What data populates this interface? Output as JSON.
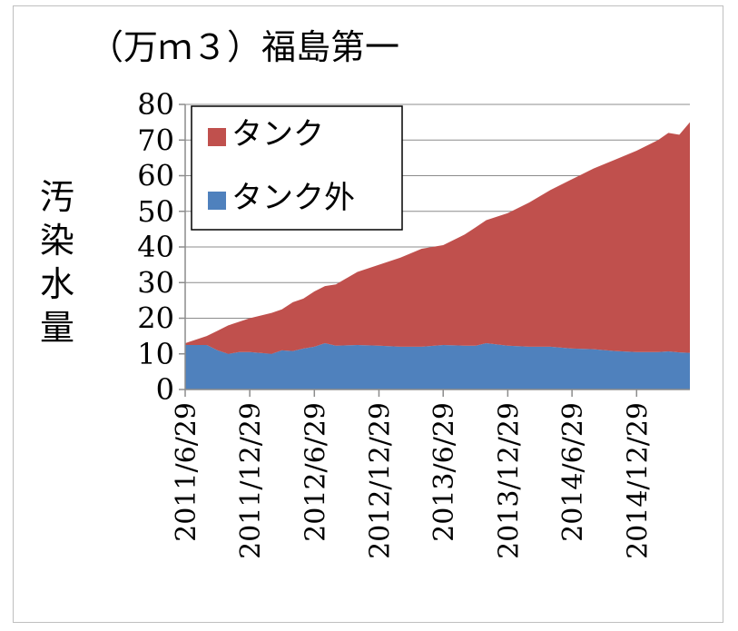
{
  "chart_data": {
    "type": "area",
    "stacked": true,
    "title": "（万ｍ３）福島第一",
    "ylabel": "汚染水量",
    "ylim": [
      0,
      80
    ],
    "yticks": [
      0,
      10,
      20,
      30,
      40,
      50,
      60,
      70,
      80
    ],
    "grid": true,
    "legend_position": "top-left",
    "x_tick_labels": [
      "2011/6/29",
      "2011/12/29",
      "2012/6/29",
      "2012/12/29",
      "2013/6/29",
      "2013/12/29",
      "2014/6/29",
      "2014/12/29"
    ],
    "x_dates": [
      "2011/6/29",
      "2011/8/29",
      "2011/9/29",
      "2011/10/29",
      "2011/11/29",
      "2011/12/29",
      "2012/2/29",
      "2012/3/29",
      "2012/4/29",
      "2012/5/29",
      "2012/6/29",
      "2012/7/29",
      "2012/8/29",
      "2012/10/29",
      "2012/12/29",
      "2013/2/28",
      "2013/4/29",
      "2013/6/29",
      "2013/8/29",
      "2013/9/29",
      "2013/10/29",
      "2013/12/29",
      "2014/2/28",
      "2014/4/29",
      "2014/6/29",
      "2014/8/29",
      "2014/10/29",
      "2014/12/29",
      "2015/2/28",
      "2015/3/29",
      "2015/4/29",
      "2015/5/29"
    ],
    "series": [
      {
        "name": "タンク外",
        "color": "#4f81bd",
        "values": [
          12.5,
          12.5,
          11.0,
          10.0,
          10.5,
          10.5,
          10.0,
          11.0,
          10.8,
          11.5,
          12.0,
          13.0,
          12.3,
          12.5,
          12.3,
          12.0,
          12.0,
          12.5,
          12.3,
          12.3,
          13.0,
          12.3,
          12.0,
          12.0,
          11.5,
          11.3,
          10.8,
          10.5,
          10.5,
          10.7,
          10.4,
          10.3
        ]
      },
      {
        "name": "タンク",
        "color": "#c0504d",
        "values": [
          0.5,
          2.5,
          5.5,
          8.0,
          8.5,
          9.5,
          11.5,
          11.5,
          13.7,
          14.0,
          15.5,
          16.0,
          17.2,
          20.5,
          22.7,
          25.0,
          27.5,
          28.0,
          31.2,
          33.2,
          34.5,
          37.2,
          40.5,
          44.0,
          47.5,
          50.7,
          53.7,
          56.5,
          59.5,
          61.3,
          61.1,
          64.7
        ]
      }
    ]
  }
}
